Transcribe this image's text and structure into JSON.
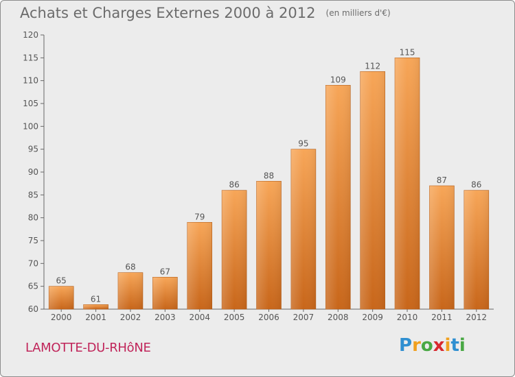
{
  "header": {
    "title": "Achats et Charges Externes 2000 à 2012",
    "subtitle": "(en milliers d'€)"
  },
  "footer": {
    "commune": "LAMOTTE-DU-RHôNE",
    "logo_letters": [
      {
        "ch": "P",
        "color": "#2f8fd1"
      },
      {
        "ch": "r",
        "color": "#f0a020"
      },
      {
        "ch": "o",
        "color": "#49a844"
      },
      {
        "ch": "x",
        "color": "#d8292f"
      },
      {
        "ch": "i",
        "color": "#f0a020"
      },
      {
        "ch": "t",
        "color": "#2f8fd1"
      },
      {
        "ch": "i",
        "color": "#49a844"
      }
    ]
  },
  "chart_data": {
    "type": "bar",
    "categories": [
      "2000",
      "2001",
      "2002",
      "2003",
      "2004",
      "2005",
      "2006",
      "2007",
      "2008",
      "2009",
      "2010",
      "2011",
      "2012"
    ],
    "values": [
      65,
      61,
      68,
      67,
      79,
      86,
      88,
      95,
      109,
      112,
      115,
      87,
      86
    ],
    "ylim": [
      60,
      120
    ],
    "yticks": [
      60,
      65,
      70,
      75,
      80,
      85,
      90,
      95,
      100,
      105,
      110,
      115,
      120
    ],
    "grid": false,
    "bar_color": "#f0923a"
  }
}
